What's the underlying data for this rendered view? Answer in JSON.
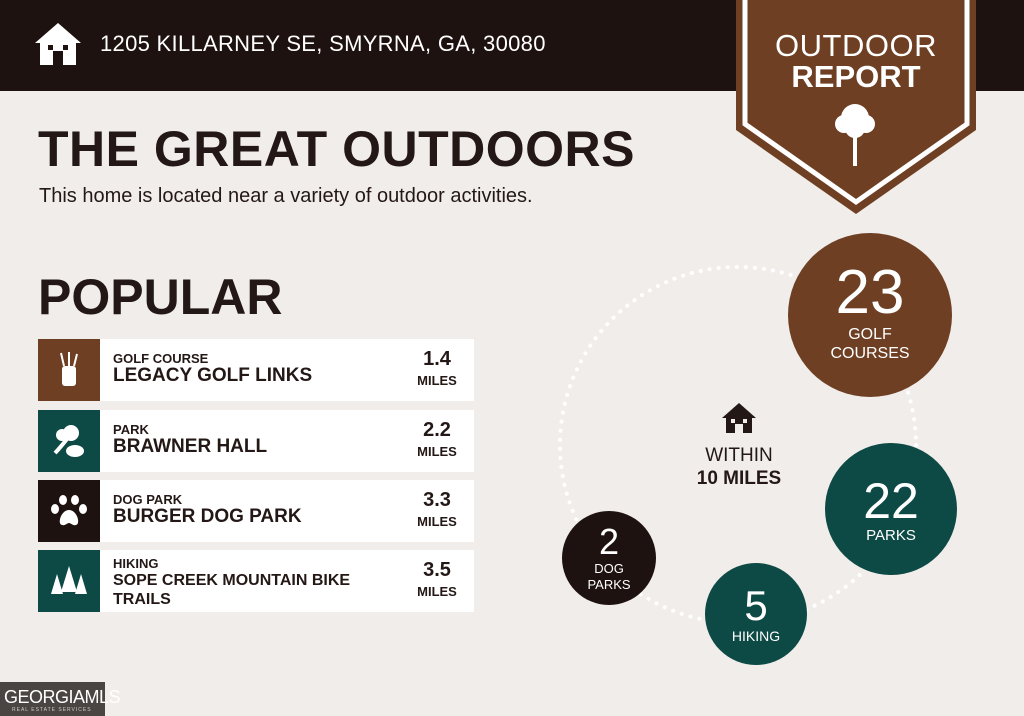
{
  "header": {
    "address": "1205 KILLARNEY SE, SMYRNA, GA, 30080",
    "icon": "home-icon"
  },
  "badge": {
    "line1": "OUTDOOR",
    "line2": "REPORT",
    "icon": "tree-icon"
  },
  "title": "THE GREAT OUTDOORS",
  "subtitle": "This home is located near a variety of outdoor activities.",
  "popular": {
    "heading": "POPULAR",
    "items": [
      {
        "category": "GOLF COURSE",
        "name": "LEGACY GOLF LINKS",
        "distance": "1.4",
        "unit": "MILES",
        "icon": "golf-bag-icon",
        "color": "#6e3f23"
      },
      {
        "category": "PARK",
        "name": "BRAWNER HALL",
        "distance": "2.2",
        "unit": "MILES",
        "icon": "park-icon",
        "color": "#0d4a45"
      },
      {
        "category": "DOG PARK",
        "name": "BURGER DOG PARK",
        "distance": "3.3",
        "unit": "MILES",
        "icon": "paw-icon",
        "color": "#1e1210"
      },
      {
        "category": "HIKING",
        "name": "SOPE CREEK MOUNTAIN BIKE TRAILS",
        "distance": "3.5",
        "unit": "MILES",
        "icon": "pine-trees-icon",
        "color": "#0d4a45"
      }
    ]
  },
  "summary": {
    "within_line1": "WITHIN",
    "within_line2": "10 MILES",
    "golf": {
      "count": "23",
      "label": "GOLF COURSES",
      "color": "#6e3f23"
    },
    "parks": {
      "count": "22",
      "label": "PARKS",
      "color": "#0d4a45"
    },
    "hiking": {
      "count": "5",
      "label": "HIKING",
      "color": "#0d4a45"
    },
    "dog": {
      "count": "2",
      "label": "DOG PARKS",
      "color": "#1e1210"
    }
  },
  "logo": {
    "text": "GEORGIAMLS",
    "sub": "REAL ESTATE SERVICES"
  }
}
